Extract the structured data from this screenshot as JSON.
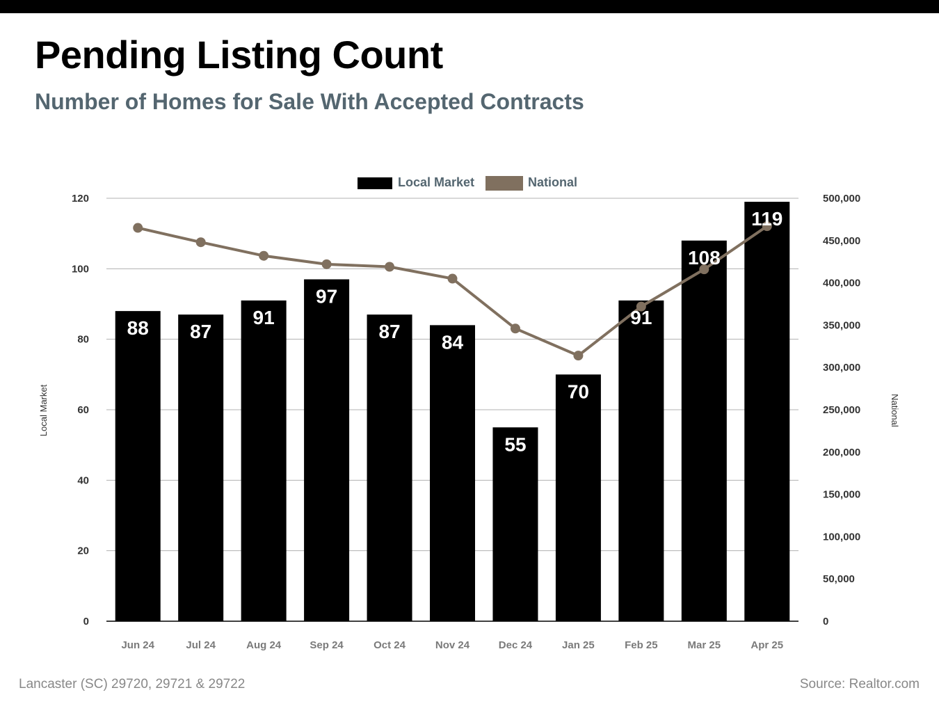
{
  "header": {
    "title": "Pending Listing Count",
    "subtitle": "Number of Homes for Sale With Accepted Contracts"
  },
  "footer": {
    "location": "Lancaster (SC) 29720, 29721 & 29722",
    "source": "Source: Realtor.com"
  },
  "colors": {
    "top_bar": "#000000",
    "bars": "#000000",
    "line": "#80705f",
    "subtitle": "#546670",
    "legend_text": "#546670",
    "grid": "#b0b0b0"
  },
  "chart_data": {
    "type": "bar",
    "categories": [
      "Jun 24",
      "Jul 24",
      "Aug 24",
      "Sep 24",
      "Oct 24",
      "Nov 24",
      "Dec 24",
      "Jan 25",
      "Feb 25",
      "Mar 25",
      "Apr 25"
    ],
    "series": [
      {
        "name": "Local Market",
        "type": "bar",
        "axis": "left",
        "values": [
          88,
          87,
          91,
          97,
          87,
          84,
          55,
          70,
          91,
          108,
          119
        ]
      },
      {
        "name": "National",
        "type": "line",
        "axis": "right",
        "values": [
          465000,
          448000,
          432000,
          422000,
          419000,
          405000,
          346000,
          314000,
          372000,
          416000,
          467000
        ]
      }
    ],
    "ylabel": "Local Market",
    "y2label": "National",
    "ylim": [
      0,
      120
    ],
    "y2lim": [
      0,
      500000
    ],
    "yticks": [
      "0",
      "20",
      "40",
      "60",
      "80",
      "100",
      "120"
    ],
    "y2ticks": [
      "0",
      "50,000",
      "100,000",
      "150,000",
      "200,000",
      "250,000",
      "300,000",
      "350,000",
      "400,000",
      "450,000",
      "500,000"
    ],
    "grid": true,
    "legend": "top-center",
    "data_labels": true
  }
}
